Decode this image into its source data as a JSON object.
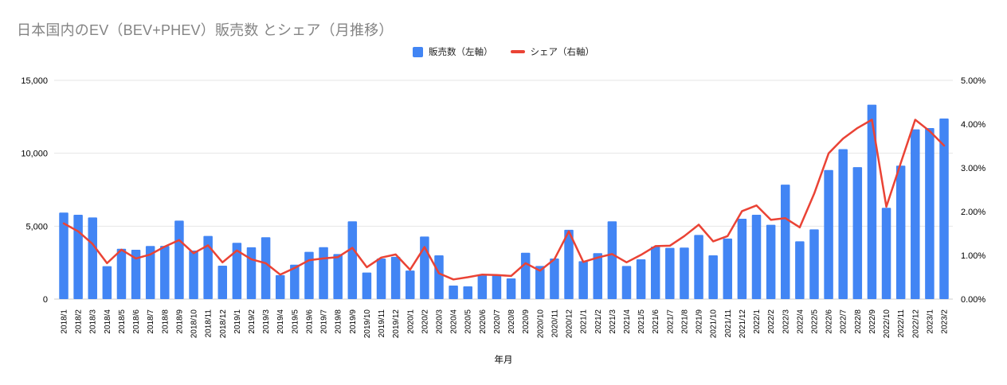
{
  "title": "日本国内のEV（BEV+PHEV）販売数 とシェア（月推移）",
  "chart_data": {
    "type": "combo",
    "title": "日本国内のEV（BEV+PHEV）販売数 とシェア（月推移）",
    "xlabel": "年月",
    "legend_position": "top",
    "grid": true,
    "categories": [
      "2018/1",
      "2018/2",
      "2018/3",
      "2018/4",
      "2018/5",
      "2018/6",
      "2018/7",
      "2018/8",
      "2018/9",
      "2018/10",
      "2018/11",
      "2018/12",
      "2019/1",
      "2019/2",
      "2019/3",
      "2019/4",
      "2019/5",
      "2019/6",
      "2019/7",
      "2019/8",
      "2019/9",
      "2019/10",
      "2019/11",
      "2019/12",
      "2020/1",
      "2020/2",
      "2020/3",
      "2020/4",
      "2020/5",
      "2020/6",
      "2020/7",
      "2020/8",
      "2020/9",
      "2020/10",
      "2020/11",
      "2020/12",
      "2021/1",
      "2021/2",
      "2021/3",
      "2021/4",
      "2021/5",
      "2021/6",
      "2021/7",
      "2021/8",
      "2021/9",
      "2021/10",
      "2021/11",
      "2021/12",
      "2022/1",
      "2022/2",
      "2022/3",
      "2022/4",
      "2022/5",
      "2022/6",
      "2022/7",
      "2022/8",
      "2022/9",
      "2022/10",
      "2022/11",
      "2022/12",
      "2023/1",
      "2023/2"
    ],
    "series": [
      {
        "name": "販売数（左軸）",
        "type": "bar",
        "axis": "left",
        "color": "#4285F4",
        "values": [
          5930,
          5780,
          5600,
          2260,
          3450,
          3380,
          3640,
          3650,
          5380,
          3330,
          4330,
          2290,
          3860,
          3550,
          4240,
          1640,
          2360,
          3240,
          3560,
          3090,
          5330,
          1820,
          2780,
          2900,
          1960,
          4290,
          3000,
          930,
          870,
          1640,
          1690,
          1420,
          3180,
          2270,
          2780,
          4750,
          2600,
          3150,
          5330,
          2270,
          2730,
          3600,
          3510,
          3530,
          4400,
          3000,
          4150,
          5510,
          5780,
          5090,
          7850,
          3960,
          4780,
          8850,
          10280,
          9050,
          13330,
          6260,
          9150,
          11640,
          11730,
          12380
        ]
      },
      {
        "name": "シェア（右軸）",
        "type": "line",
        "axis": "right",
        "color": "#EA4335",
        "values": [
          1.73,
          1.55,
          1.26,
          0.82,
          1.13,
          0.93,
          1.02,
          1.2,
          1.35,
          1.05,
          1.23,
          0.84,
          1.11,
          0.91,
          0.82,
          0.56,
          0.71,
          0.89,
          0.93,
          0.96,
          1.17,
          0.73,
          0.95,
          1.02,
          0.67,
          1.19,
          0.59,
          0.45,
          0.5,
          0.56,
          0.55,
          0.53,
          0.82,
          0.65,
          0.91,
          1.55,
          0.85,
          0.95,
          1.03,
          0.84,
          1.01,
          1.21,
          1.22,
          1.44,
          1.7,
          1.32,
          1.44,
          2.01,
          2.14,
          1.81,
          1.85,
          1.64,
          2.41,
          3.33,
          3.67,
          3.91,
          4.1,
          2.11,
          3.11,
          4.1,
          3.84,
          3.51
        ]
      }
    ],
    "left_axis": {
      "max": 15000,
      "values": [
        0,
        5000,
        10000,
        15000
      ],
      "labels": [
        "0",
        "5,000",
        "10,000",
        "15,000"
      ]
    },
    "right_axis": {
      "max": 5,
      "values": [
        0,
        1,
        2,
        3,
        4,
        5
      ],
      "labels": [
        "0.00%",
        "1.00%",
        "2.00%",
        "3.00%",
        "4.00%",
        "5.00%"
      ]
    },
    "colors": {
      "bar": "#4285F4",
      "line": "#EA4335",
      "gridline": "#e6e6e6",
      "baseline": "#cccccc",
      "title": "#848484",
      "axis_text": "#000000"
    }
  }
}
